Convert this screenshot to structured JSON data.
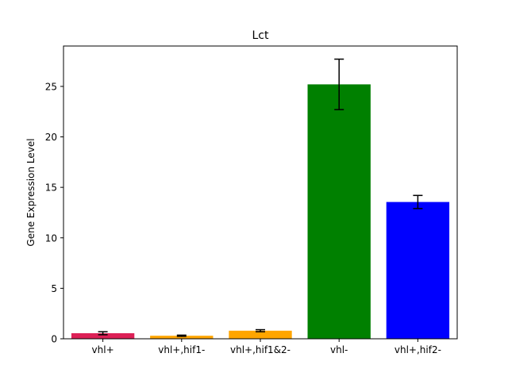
{
  "chart_data": {
    "type": "bar",
    "title": "Lct",
    "xlabel": "",
    "ylabel": "Gene Expression Level",
    "categories": [
      "vhl+",
      "vhl+,hif1-",
      "vhl+,hif1&2-",
      "vhl-",
      "vhl+,hif2-"
    ],
    "values": [
      0.55,
      0.3,
      0.8,
      25.2,
      13.55
    ],
    "errors": [
      0.15,
      0.06,
      0.1,
      2.5,
      0.65
    ],
    "colors": [
      "#dc2056",
      "#ffa500",
      "#ffa500",
      "#008000",
      "#0000ff"
    ],
    "ylim": [
      0,
      29
    ],
    "yticks": [
      0,
      5,
      10,
      15,
      20,
      25
    ],
    "grid": false
  }
}
